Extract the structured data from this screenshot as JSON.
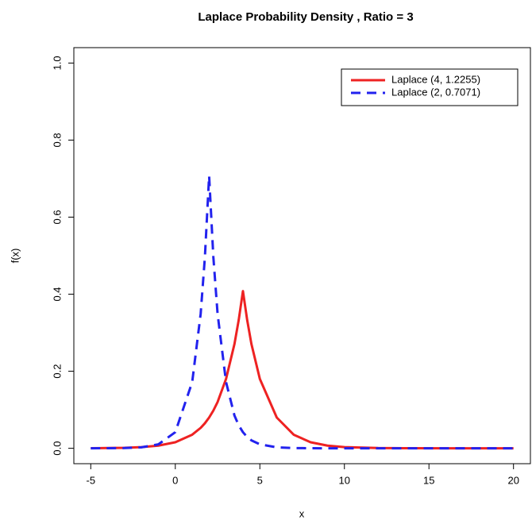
{
  "chart_data": {
    "type": "line",
    "title": "Laplace Probability Density , Ratio = 3",
    "x_label": "x",
    "y_label": "f(x)",
    "x": [
      -5,
      -4,
      -3,
      -2,
      -1,
      0,
      1,
      1.5,
      1.75,
      2,
      2.25,
      2.5,
      3,
      3.5,
      3.75,
      4,
      4.25,
      4.5,
      5,
      6,
      7,
      8,
      9,
      10,
      12,
      14,
      16,
      18,
      20
    ],
    "series": [
      {
        "name": "Laplace (4, 1.2255)",
        "color": "#ee2222",
        "dash": "solid",
        "values": [
          0.0003,
          0.0006,
          0.0013,
          0.0031,
          0.0069,
          0.0156,
          0.0353,
          0.053,
          0.065,
          0.0798,
          0.0978,
          0.12,
          0.18,
          0.271,
          0.333,
          0.408,
          0.333,
          0.271,
          0.18,
          0.0798,
          0.0353,
          0.0156,
          0.0069,
          0.0031,
          0.0006,
          0.0001,
          0,
          0,
          0
        ]
      },
      {
        "name": "Laplace (2, 0.7071)",
        "color": "#2222ee",
        "dash": "dashed",
        "values": [
          0,
          0.0001,
          0.0006,
          0.0025,
          0.0102,
          0.0418,
          0.172,
          0.349,
          0.4965,
          0.7071,
          0.4965,
          0.349,
          0.172,
          0.0848,
          0.0595,
          0.0418,
          0.0293,
          0.0206,
          0.0102,
          0.0025,
          0.0006,
          0.0001,
          0,
          0,
          0,
          0,
          0,
          0,
          0
        ]
      }
    ],
    "xlim": [
      -6,
      21
    ],
    "ylim": [
      -0.04,
      1.04
    ],
    "xticks": [
      -5,
      0,
      5,
      10,
      15,
      20
    ],
    "yticks": [
      {
        "value": 0,
        "label": "0.0"
      },
      {
        "value": 0.2,
        "label": "0.2"
      },
      {
        "value": 0.4,
        "label": "0.4"
      },
      {
        "value": 0.6,
        "label": "0.6"
      },
      {
        "value": 0.8,
        "label": "0.8"
      },
      {
        "value": 1,
        "label": "1.0"
      }
    ],
    "legend": "top-right",
    "grid": false
  }
}
